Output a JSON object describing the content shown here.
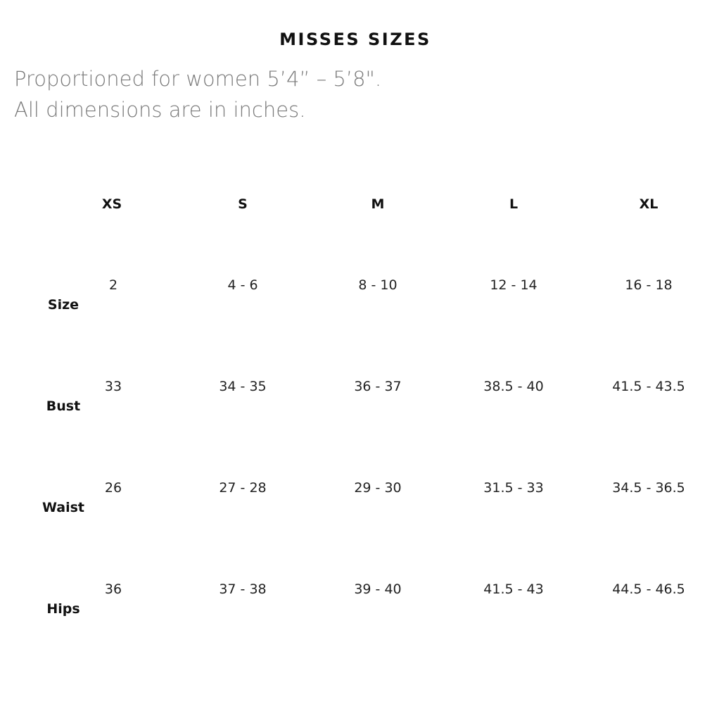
{
  "title": "MISSES SIZES",
  "subtitle_lines": [
    "Proportioned for women 5’4” – 5’8\".",
    "All dimensions are in inches."
  ],
  "columns": [
    "XS",
    "S",
    "M",
    "L",
    "XL"
  ],
  "rows": [
    {
      "label": "Size",
      "values": [
        "2",
        "4 - 6",
        "8 - 10",
        "12 - 14",
        "16 - 18"
      ]
    },
    {
      "label": "Bust",
      "values": [
        "33",
        "34 - 35",
        "36 - 37",
        "38.5 - 40",
        "41.5 - 43.5"
      ]
    },
    {
      "label": "Waist",
      "values": [
        "26",
        "27 - 28",
        "29 - 30",
        "31.5 - 33",
        "34.5 - 36.5"
      ]
    },
    {
      "label": "Hips",
      "values": [
        "36",
        "37 - 38",
        "39 - 40",
        "41.5 - 43",
        "44.5 - 46.5"
      ]
    }
  ]
}
